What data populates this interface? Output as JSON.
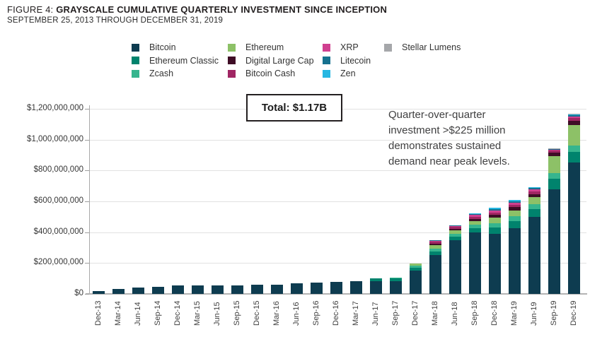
{
  "header": {
    "figure_label": "FIGURE 4:",
    "title": "GRAYSCALE CUMULATIVE QUARTERLY INVESTMENT SINCE INCEPTION",
    "subtitle": "SEPTEMBER 25, 2013 THROUGH DECEMBER 31, 2019"
  },
  "annotations": {
    "total_label": "Total: $1.17B",
    "note_lines": [
      "Quarter-over-quarter",
      "investment >$225 million",
      "demonstrates sustained",
      "demand near peak levels."
    ]
  },
  "chart_data": {
    "type": "bar",
    "stacked": true,
    "unit": "USD",
    "title": "Grayscale Cumulative Quarterly Investment Since Inception",
    "xlabel": "",
    "ylabel": "",
    "ylim": [
      0,
      1200000000
    ],
    "grid": true,
    "legend_position": "top",
    "y_tick_labels_top_to_bottom": [
      "$1,200,000,000",
      "$1,000,000,000",
      "$800,000,000",
      "$600,000,000",
      "$400,000,000",
      "$200,000,000",
      "$0"
    ],
    "categories": [
      "Dec-13",
      "Mar-14",
      "Jun-14",
      "Sep-14",
      "Dec-14",
      "Mar-15",
      "Jun-15",
      "Sep-15",
      "Dec-15",
      "Mar-16",
      "Jun-16",
      "Sep-16",
      "Dec-16",
      "Mar-17",
      "Jun-17",
      "Sep-17",
      "Dec-17",
      "Mar-18",
      "Jun-18",
      "Sep-18",
      "Dec-18",
      "Mar-19",
      "Jun-19",
      "Sep-19",
      "Dec-19"
    ],
    "values_unit": "USD millions (estimated from bar heights, stacked bottom-to-top in series order)",
    "series": [
      {
        "name": "Bitcoin",
        "color": "#0e3c50",
        "values": [
          18,
          32,
          41,
          45,
          55,
          56,
          57,
          57,
          60,
          60,
          70,
          74,
          77,
          83,
          82,
          82,
          152,
          250,
          350,
          400,
          390,
          427,
          500,
          676,
          850
        ]
      },
      {
        "name": "Ethereum Classic",
        "color": "#00836d",
        "values": [
          0,
          0,
          0,
          0,
          0,
          0,
          0,
          0,
          0,
          0,
          0,
          0,
          0,
          0,
          21,
          22,
          18,
          24,
          21,
          24,
          40,
          45,
          48,
          70,
          70
        ]
      },
      {
        "name": "Zcash",
        "color": "#36b58e",
        "values": [
          0,
          0,
          0,
          0,
          0,
          0,
          0,
          0,
          0,
          0,
          0,
          0,
          0,
          0,
          0,
          2,
          12,
          18,
          18,
          24,
          28,
          30,
          33,
          36,
          40
        ]
      },
      {
        "name": "Ethereum",
        "color": "#8dc167",
        "values": [
          0,
          0,
          0,
          0,
          0,
          0,
          0,
          0,
          0,
          0,
          0,
          0,
          0,
          0,
          0,
          0,
          15,
          24,
          24,
          24,
          36,
          39,
          48,
          112,
          135
        ]
      },
      {
        "name": "Digital Large Cap",
        "color": "#3f0d26",
        "values": [
          0,
          0,
          0,
          0,
          0,
          0,
          0,
          0,
          0,
          0,
          0,
          0,
          0,
          0,
          0,
          0,
          0,
          9,
          9,
          15,
          18,
          21,
          18,
          24,
          27
        ]
      },
      {
        "name": "Bitcoin Cash",
        "color": "#a02663",
        "values": [
          0,
          0,
          0,
          0,
          0,
          0,
          0,
          0,
          0,
          0,
          0,
          0,
          0,
          0,
          0,
          0,
          0,
          12,
          12,
          12,
          15,
          15,
          15,
          10,
          18
        ]
      },
      {
        "name": "XRP",
        "color": "#d04090",
        "values": [
          0,
          0,
          0,
          0,
          0,
          0,
          0,
          0,
          0,
          0,
          0,
          0,
          0,
          0,
          0,
          0,
          0,
          9,
          9,
          12,
          14,
          15,
          15,
          8,
          11
        ]
      },
      {
        "name": "Litecoin",
        "color": "#16718f",
        "values": [
          0,
          0,
          0,
          0,
          0,
          0,
          0,
          0,
          0,
          0,
          0,
          0,
          0,
          0,
          0,
          0,
          0,
          2,
          3,
          5,
          10,
          8,
          8,
          3,
          10
        ]
      },
      {
        "name": "Zen",
        "color": "#27b7e2",
        "values": [
          0,
          0,
          0,
          0,
          0,
          0,
          0,
          0,
          0,
          0,
          0,
          0,
          0,
          0,
          0,
          0,
          0,
          0,
          0,
          4,
          8,
          7,
          7,
          3,
          6
        ]
      },
      {
        "name": "Stellar Lumens",
        "color": "#a5a7aa",
        "values": [
          0,
          0,
          0,
          0,
          0,
          0,
          0,
          0,
          0,
          0,
          0,
          0,
          0,
          0,
          0,
          0,
          0,
          0,
          0,
          0,
          0,
          0,
          0,
          3,
          3
        ]
      }
    ],
    "legend_columns": [
      [
        "Bitcoin",
        "Ethereum Classic",
        "Zcash"
      ],
      [
        "Ethereum",
        "Digital Large Cap",
        "Bitcoin Cash"
      ],
      [
        "XRP",
        "Litecoin",
        "Zen"
      ],
      [
        "Stellar Lumens"
      ]
    ]
  }
}
